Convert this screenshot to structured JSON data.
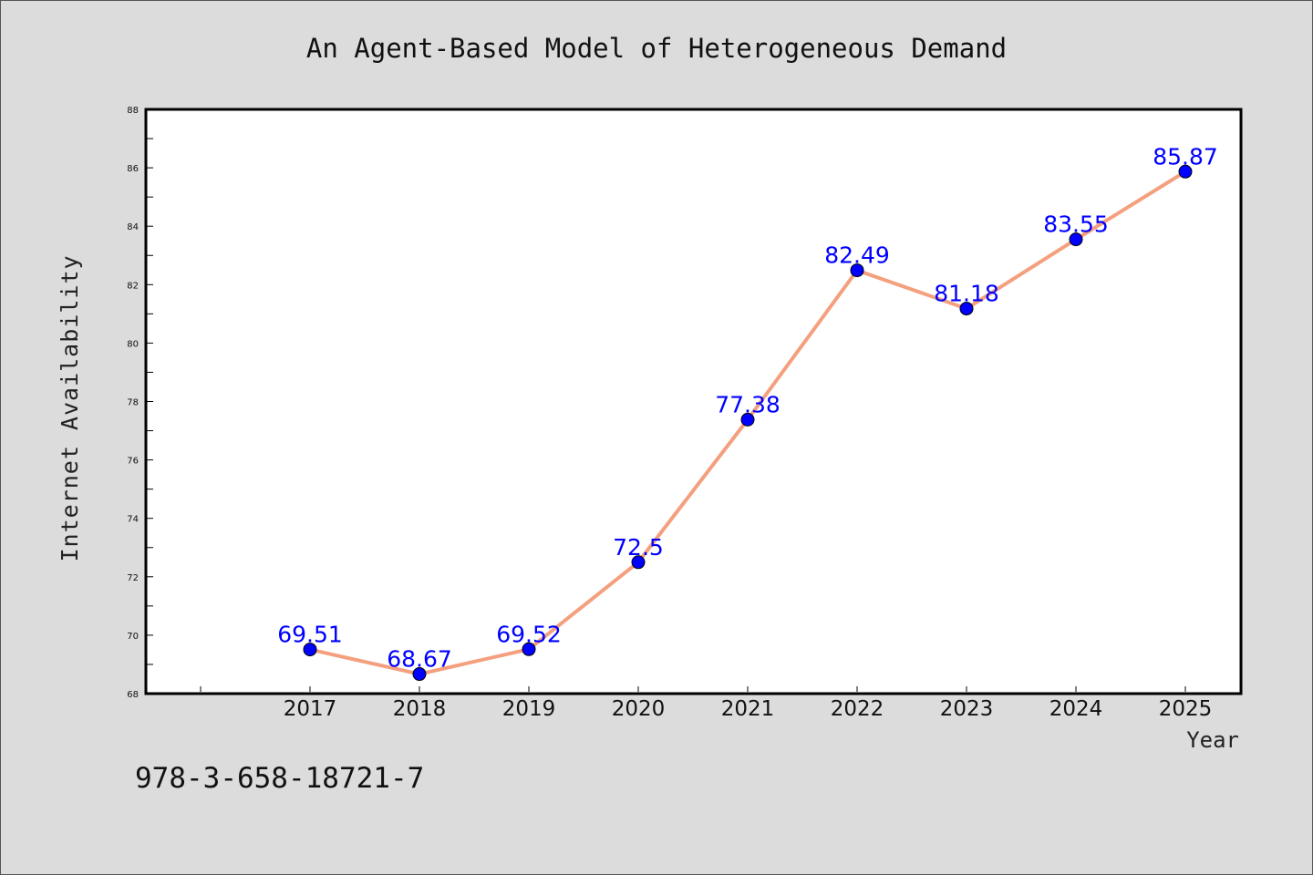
{
  "chart_data": {
    "type": "line",
    "title": "An Agent-Based Model of Heterogeneous Demand",
    "xlabel": "Year",
    "ylabel": "Internet Availability",
    "categories": [
      "2017",
      "2018",
      "2019",
      "2020",
      "2021",
      "2022",
      "2023",
      "2024",
      "2025"
    ],
    "series": [
      {
        "values": [
          69.51,
          68.67,
          69.52,
          72.5,
          77.38,
          82.49,
          81.18,
          83.55,
          85.87
        ],
        "labels": [
          "69.51",
          "68.67",
          "69.52",
          "72.5",
          "77.38",
          "82.49",
          "81.18",
          "83.55",
          "85.87"
        ]
      }
    ],
    "ylim": [
      68,
      88
    ],
    "yticks": [
      68,
      70,
      72,
      74,
      76,
      78,
      80,
      82,
      84,
      86,
      88
    ],
    "grid": false,
    "legend": "none",
    "colors": {
      "line": "#f4a07f",
      "marker": "#0000ff",
      "label": "#0000ff",
      "background": "#dcdcdc",
      "plot_background": "#ffffff"
    }
  },
  "footer": {
    "isbn": "978-3-658-18721-7"
  }
}
